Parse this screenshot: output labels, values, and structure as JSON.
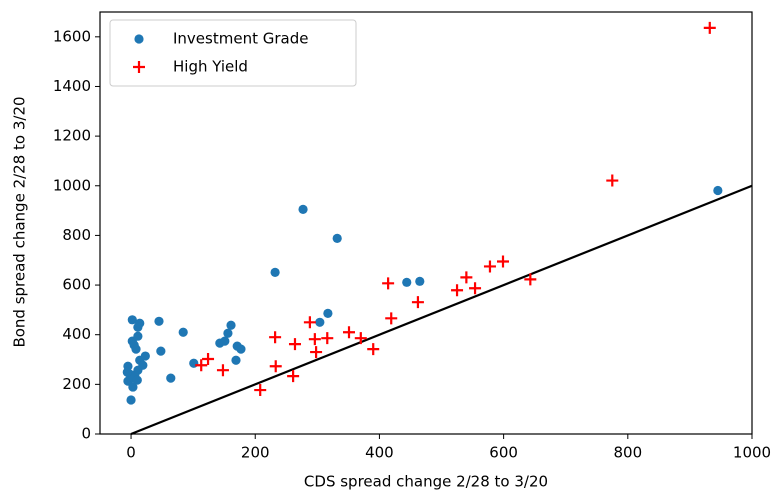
{
  "chart_data": {
    "type": "scatter",
    "x_label": "CDS spread change 2/28 to 3/20",
    "y_label": "Bond spread change 2/28 to 3/20",
    "xlim": [
      -50,
      1000
    ],
    "ylim": [
      0,
      1700
    ],
    "xticks": [
      0,
      200,
      400,
      600,
      800,
      1000
    ],
    "yticks": [
      0,
      200,
      400,
      600,
      800,
      1000,
      1200,
      1400,
      1600
    ],
    "grid": false,
    "legend": "upper left",
    "series": [
      {
        "name": "Investment Grade",
        "color": "#1f77b4",
        "marker": "circle",
        "x": [
          2,
          2,
          5,
          -5,
          -5,
          0,
          3,
          8,
          11,
          14,
          11,
          14,
          23,
          19,
          6,
          -2,
          3,
          10,
          -6,
          11,
          64,
          45,
          48,
          84,
          101,
          143,
          151,
          156,
          161,
          169,
          171,
          177,
          232,
          277,
          332,
          304,
          317,
          444,
          465,
          945
        ],
        "values": [
          460,
          374,
          358,
          273,
          213,
          137,
          189,
          342,
          430,
          446,
          257,
          297,
          314,
          277,
          237,
          241,
          225,
          217,
          249,
          394,
          225,
          454,
          334,
          410,
          285,
          366,
          374,
          406,
          438,
          297,
          354,
          342,
          651,
          905,
          788,
          450,
          486,
          611,
          615,
          981
        ]
      },
      {
        "name": "High Yield",
        "color": "#ff0000",
        "marker": "plus",
        "x": [
          113,
          124,
          148,
          208,
          232,
          233,
          264,
          261,
          288,
          296,
          298,
          316,
          351,
          370,
          390,
          414,
          419,
          462,
          525,
          540,
          554,
          578,
          599,
          643,
          775,
          932
        ],
        "values": [
          277,
          302,
          257,
          177,
          390,
          273,
          362,
          233,
          450,
          382,
          330,
          386,
          410,
          386,
          342,
          607,
          466,
          531,
          579,
          631,
          587,
          675,
          695,
          623,
          1021,
          1636
        ]
      }
    ],
    "reference_line": {
      "x": [
        0,
        1000
      ],
      "values": [
        0,
        1000
      ],
      "color": "#000000"
    }
  }
}
